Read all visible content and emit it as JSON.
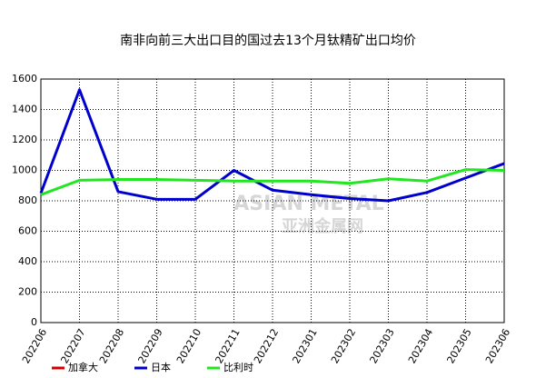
{
  "chart_data": {
    "type": "line",
    "title": "南非向前三大出口目的国过去13个月钛精矿出口均价",
    "watermark": [
      "ASIAN METAL",
      "亚洲金属网"
    ],
    "categories": [
      "202206",
      "202207",
      "202208",
      "202209",
      "202210",
      "202211",
      "202212",
      "202301",
      "202302",
      "202303",
      "202304",
      "202305",
      "202306"
    ],
    "series": [
      {
        "name": "加拿大",
        "color": "#d40000",
        "values": [
          null,
          null,
          null,
          null,
          null,
          null,
          null,
          null,
          null,
          null,
          null,
          null,
          null
        ]
      },
      {
        "name": "日本",
        "color": "#0000cc",
        "values": [
          850,
          1530,
          860,
          810,
          810,
          1000,
          870,
          840,
          815,
          800,
          855,
          950,
          1045
        ]
      },
      {
        "name": "比利时",
        "color": "#22e622",
        "values": [
          840,
          935,
          940,
          940,
          935,
          930,
          930,
          930,
          915,
          945,
          930,
          1005,
          1000
        ]
      }
    ],
    "ylim": [
      0,
      1600
    ],
    "yticks": [
      0,
      200,
      400,
      600,
      800,
      1000,
      1200,
      1400,
      1600
    ],
    "grid": true
  }
}
